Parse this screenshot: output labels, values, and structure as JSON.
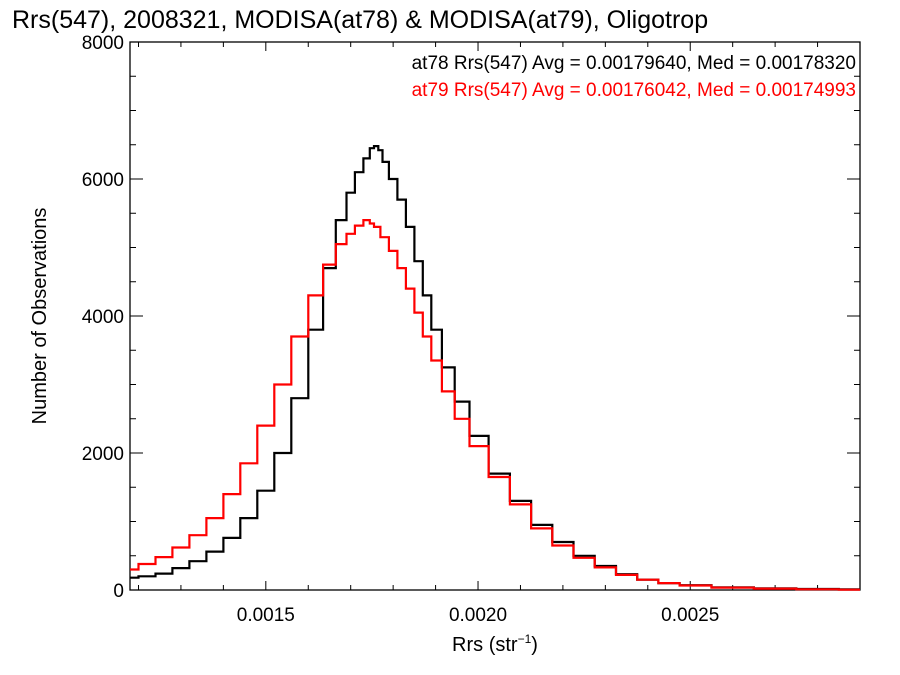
{
  "chart_data": {
    "type": "line",
    "title": "Rrs(547), 2008321, MODISA(at78) & MODISA(at79), Oligotrop",
    "xlabel": "Rrs (str",
    "xlabel_sup": "−1",
    "xlabel_close": ")",
    "ylabel": "Number of Observations",
    "xlim": [
      0.00118,
      0.0029
    ],
    "ylim": [
      0,
      8000
    ],
    "x_ticks": [
      {
        "value": 0.0015,
        "label": "0.0015"
      },
      {
        "value": 0.002,
        "label": "0.0020"
      },
      {
        "value": 0.0025,
        "label": "0.0025"
      }
    ],
    "y_ticks": [
      {
        "value": 0,
        "label": "0"
      },
      {
        "value": 2000,
        "label": "2000"
      },
      {
        "value": 4000,
        "label": "4000"
      },
      {
        "value": 6000,
        "label": "6000"
      },
      {
        "value": 8000,
        "label": "8000"
      }
    ],
    "grid": false,
    "legend_position": "top-right",
    "series": [
      {
        "name": "at78",
        "color": "#000000",
        "stats": "at78 Rrs(547) Avg = 0.00179640, Med = 0.00178320",
        "x": [
          0.00118,
          0.00122,
          0.00126,
          0.0013,
          0.00134,
          0.00138,
          0.00142,
          0.00146,
          0.0015,
          0.00154,
          0.00158,
          0.00162,
          0.00165,
          0.00168,
          0.0017,
          0.00172,
          0.00174,
          0.00175,
          0.00176,
          0.00177,
          0.00178,
          0.0018,
          0.00182,
          0.00184,
          0.00186,
          0.00188,
          0.0019,
          0.00193,
          0.00196,
          0.002,
          0.00205,
          0.0021,
          0.00215,
          0.0022,
          0.00225,
          0.0023,
          0.00235,
          0.0024,
          0.00245,
          0.0025,
          0.0026,
          0.0027,
          0.0028,
          0.0029
        ],
        "y": [
          180,
          200,
          240,
          320,
          420,
          560,
          760,
          1050,
          1450,
          2000,
          2800,
          3800,
          4700,
          5400,
          5800,
          6100,
          6300,
          6450,
          6480,
          6420,
          6250,
          6000,
          5700,
          5300,
          4800,
          4300,
          3800,
          3250,
          2750,
          2250,
          1700,
          1300,
          950,
          700,
          500,
          350,
          230,
          150,
          100,
          70,
          40,
          25,
          15,
          10
        ]
      },
      {
        "name": "at79",
        "color": "#ff0000",
        "stats": "at79 Rrs(547) Avg = 0.00176042, Med = 0.00174993",
        "x": [
          0.00118,
          0.00122,
          0.00126,
          0.0013,
          0.00134,
          0.00138,
          0.00142,
          0.00146,
          0.0015,
          0.00154,
          0.00158,
          0.00162,
          0.00165,
          0.00168,
          0.0017,
          0.00172,
          0.00174,
          0.00175,
          0.00176,
          0.00178,
          0.0018,
          0.00182,
          0.00184,
          0.00186,
          0.00188,
          0.0019,
          0.00193,
          0.00196,
          0.002,
          0.00205,
          0.0021,
          0.00215,
          0.0022,
          0.00225,
          0.0023,
          0.00235,
          0.0024,
          0.00245,
          0.0025,
          0.0026,
          0.0027,
          0.0028,
          0.0029
        ],
        "y": [
          300,
          380,
          480,
          620,
          800,
          1050,
          1400,
          1850,
          2400,
          3000,
          3700,
          4300,
          4750,
          5050,
          5200,
          5320,
          5400,
          5350,
          5300,
          5150,
          4950,
          4700,
          4400,
          4050,
          3700,
          3350,
          2900,
          2500,
          2100,
          1650,
          1250,
          900,
          650,
          470,
          330,
          220,
          150,
          100,
          65,
          35,
          20,
          10,
          5
        ]
      }
    ]
  }
}
